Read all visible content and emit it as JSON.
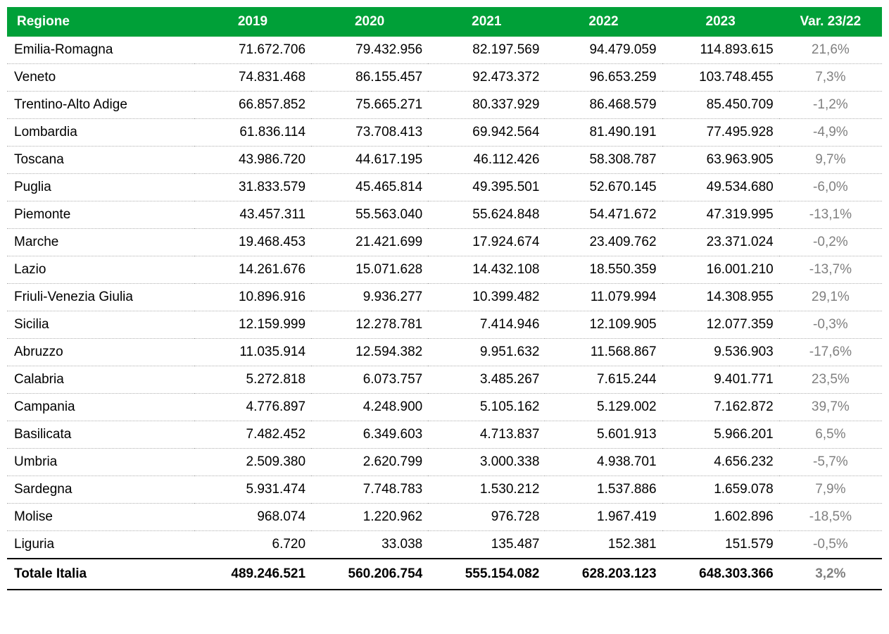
{
  "header_bg": "#00a038",
  "header_fg": "#ffffff",
  "var_color": "#808080",
  "columns": [
    "Regione",
    "2019",
    "2020",
    "2021",
    "2022",
    "2023",
    "Var. 23/22"
  ],
  "rows": [
    {
      "region": "Emilia-Romagna",
      "y2019": "71.672.706",
      "y2020": "79.432.956",
      "y2021": "82.197.569",
      "y2022": "94.479.059",
      "y2023": "114.893.615",
      "var": "21,6%"
    },
    {
      "region": "Veneto",
      "y2019": "74.831.468",
      "y2020": "86.155.457",
      "y2021": "92.473.372",
      "y2022": "96.653.259",
      "y2023": "103.748.455",
      "var": "7,3%"
    },
    {
      "region": "Trentino-Alto Adige",
      "y2019": "66.857.852",
      "y2020": "75.665.271",
      "y2021": "80.337.929",
      "y2022": "86.468.579",
      "y2023": "85.450.709",
      "var": "-1,2%"
    },
    {
      "region": "Lombardia",
      "y2019": "61.836.114",
      "y2020": "73.708.413",
      "y2021": "69.942.564",
      "y2022": "81.490.191",
      "y2023": "77.495.928",
      "var": "-4,9%"
    },
    {
      "region": "Toscana",
      "y2019": "43.986.720",
      "y2020": "44.617.195",
      "y2021": "46.112.426",
      "y2022": "58.308.787",
      "y2023": "63.963.905",
      "var": "9,7%"
    },
    {
      "region": "Puglia",
      "y2019": "31.833.579",
      "y2020": "45.465.814",
      "y2021": "49.395.501",
      "y2022": "52.670.145",
      "y2023": "49.534.680",
      "var": "-6,0%"
    },
    {
      "region": "Piemonte",
      "y2019": "43.457.311",
      "y2020": "55.563.040",
      "y2021": "55.624.848",
      "y2022": "54.471.672",
      "y2023": "47.319.995",
      "var": "-13,1%"
    },
    {
      "region": "Marche",
      "y2019": "19.468.453",
      "y2020": "21.421.699",
      "y2021": "17.924.674",
      "y2022": "23.409.762",
      "y2023": "23.371.024",
      "var": "-0,2%"
    },
    {
      "region": "Lazio",
      "y2019": "14.261.676",
      "y2020": "15.071.628",
      "y2021": "14.432.108",
      "y2022": "18.550.359",
      "y2023": "16.001.210",
      "var": "-13,7%"
    },
    {
      "region": "Friuli-Venezia Giulia",
      "y2019": "10.896.916",
      "y2020": "9.936.277",
      "y2021": "10.399.482",
      "y2022": "11.079.994",
      "y2023": "14.308.955",
      "var": "29,1%"
    },
    {
      "region": "Sicilia",
      "y2019": "12.159.999",
      "y2020": "12.278.781",
      "y2021": "7.414.946",
      "y2022": "12.109.905",
      "y2023": "12.077.359",
      "var": "-0,3%"
    },
    {
      "region": "Abruzzo",
      "y2019": "11.035.914",
      "y2020": "12.594.382",
      "y2021": "9.951.632",
      "y2022": "11.568.867",
      "y2023": "9.536.903",
      "var": "-17,6%"
    },
    {
      "region": "Calabria",
      "y2019": "5.272.818",
      "y2020": "6.073.757",
      "y2021": "3.485.267",
      "y2022": "7.615.244",
      "y2023": "9.401.771",
      "var": "23,5%"
    },
    {
      "region": "Campania",
      "y2019": "4.776.897",
      "y2020": "4.248.900",
      "y2021": "5.105.162",
      "y2022": "5.129.002",
      "y2023": "7.162.872",
      "var": "39,7%"
    },
    {
      "region": "Basilicata",
      "y2019": "7.482.452",
      "y2020": "6.349.603",
      "y2021": "4.713.837",
      "y2022": "5.601.913",
      "y2023": "5.966.201",
      "var": "6,5%"
    },
    {
      "region": "Umbria",
      "y2019": "2.509.380",
      "y2020": "2.620.799",
      "y2021": "3.000.338",
      "y2022": "4.938.701",
      "y2023": "4.656.232",
      "var": "-5,7%"
    },
    {
      "region": "Sardegna",
      "y2019": "5.931.474",
      "y2020": "7.748.783",
      "y2021": "1.530.212",
      "y2022": "1.537.886",
      "y2023": "1.659.078",
      "var": "7,9%"
    },
    {
      "region": "Molise",
      "y2019": "968.074",
      "y2020": "1.220.962",
      "y2021": "976.728",
      "y2022": "1.967.419",
      "y2023": "1.602.896",
      "var": "-18,5%"
    },
    {
      "region": "Liguria",
      "y2019": "6.720",
      "y2020": "33.038",
      "y2021": "135.487",
      "y2022": "152.381",
      "y2023": "151.579",
      "var": "-0,5%"
    }
  ],
  "total": {
    "label": "Totale Italia",
    "y2019": "489.246.521",
    "y2020": "560.206.754",
    "y2021": "555.154.082",
    "y2022": "628.203.123",
    "y2023": "648.303.366",
    "var": "3,2%"
  }
}
